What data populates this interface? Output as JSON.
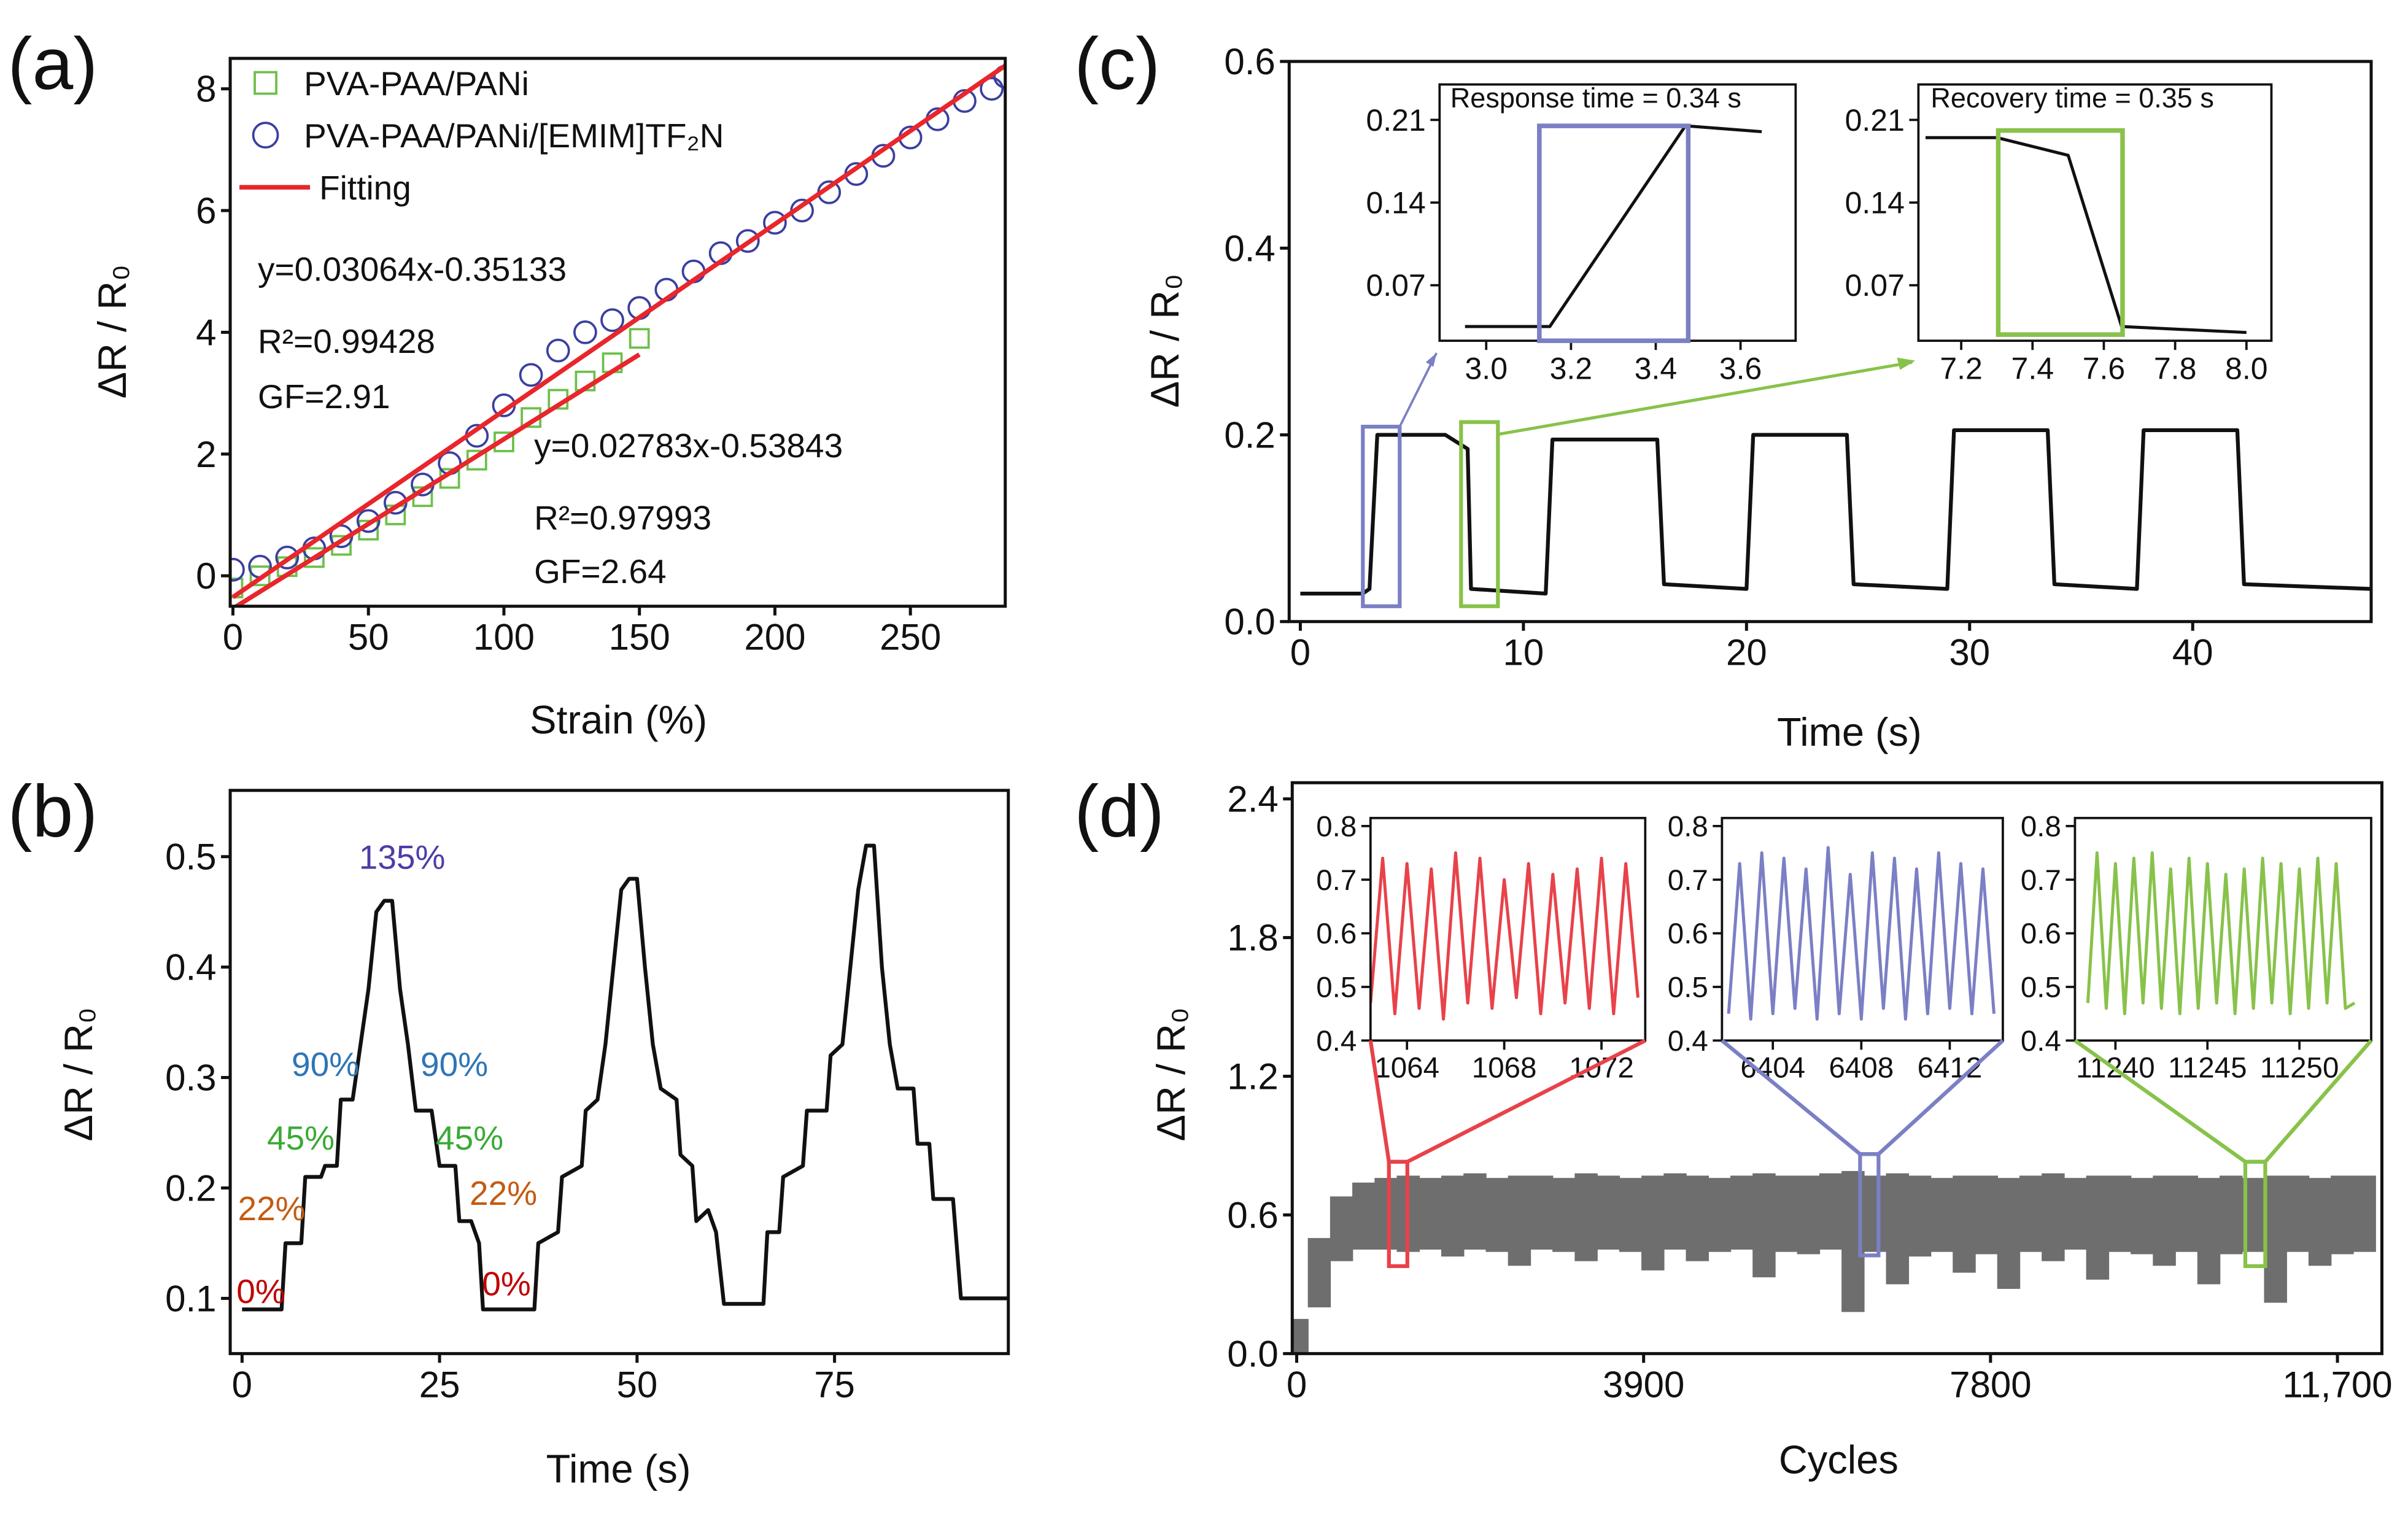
{
  "chart_data": [
    {
      "type": "scatter",
      "panel": "(a)",
      "xlabel": "Strain (%)",
      "ylabel": "ΔR / R₀",
      "legend": "upper left",
      "xlim": [
        -1,
        285
      ],
      "ylim": [
        -0.5,
        8.5
      ],
      "xticks": [
        0,
        50,
        100,
        150,
        200,
        250
      ],
      "yticks": [
        0,
        2,
        4,
        6,
        8
      ],
      "series": [
        {
          "name": "PVA-PAA/PANi",
          "color": "#6cc04a",
          "marker": "square",
          "x": [
            0,
            10,
            20,
            30,
            40,
            50,
            60,
            70,
            80,
            90,
            100,
            110,
            120,
            130,
            140,
            150
          ],
          "values": [
            -0.2,
            0,
            0.15,
            0.3,
            0.5,
            0.75,
            1.0,
            1.3,
            1.6,
            1.9,
            2.2,
            2.6,
            2.9,
            3.2,
            3.5,
            3.9
          ]
        },
        {
          "name": "PVA-PAA/PANi/[EMIM]TF₂N",
          "color": "#3a3fa0",
          "marker": "circle",
          "x": [
            0,
            10,
            20,
            30,
            40,
            50,
            60,
            70,
            80,
            90,
            100,
            110,
            120,
            130,
            140,
            150,
            160,
            170,
            180,
            190,
            200,
            210,
            220,
            230,
            240,
            250,
            260,
            270,
            280,
            285
          ],
          "values": [
            0.1,
            0.15,
            0.3,
            0.45,
            0.65,
            0.9,
            1.2,
            1.5,
            1.85,
            2.3,
            2.8,
            3.3,
            3.7,
            4.0,
            4.2,
            4.4,
            4.7,
            5.0,
            5.3,
            5.5,
            5.8,
            6.0,
            6.3,
            6.6,
            6.9,
            7.2,
            7.5,
            7.8,
            8.0,
            8.2
          ]
        },
        {
          "name": "Fitting",
          "color": "#e8262b",
          "x": [
            0,
            285
          ],
          "values": [
            -0.35133,
            8.38107
          ]
        },
        {
          "color": "#e8262b",
          "x": [
            0,
            150
          ],
          "values": [
            -0.53843,
            3.63607
          ]
        }
      ],
      "annotations": [
        "y=0.03064x-0.35133",
        "R²=0.99428",
        "GF=2.91",
        "y=0.02783x-0.53843",
        "R²=0.97993",
        "GF=2.64"
      ]
    },
    {
      "type": "line",
      "panel": "(b)",
      "xlabel": "Time (s)",
      "ylabel": "ΔR / R₀",
      "color": "#111111",
      "xlim": [
        -1.5,
        97
      ],
      "ylim": [
        0.05,
        0.56
      ],
      "xticks": [
        0,
        25,
        50,
        75
      ],
      "yticks": [
        0.1,
        0.2,
        0.3,
        0.4,
        0.5
      ],
      "x": [
        0,
        5,
        5.5,
        7.5,
        8,
        10,
        10.5,
        12,
        12.5,
        14,
        15,
        16,
        17,
        18,
        19,
        20,
        21,
        22,
        24,
        25,
        27,
        27.5,
        29,
        30,
        30.5,
        37,
        37.5,
        40,
        40.5,
        43,
        43.5,
        45,
        46,
        47,
        48,
        49,
        50,
        51,
        52,
        53,
        55,
        55.5,
        57,
        57.5,
        59,
        60,
        61,
        66,
        66.5,
        68,
        68.5,
        71,
        71.5,
        74,
        74.5,
        76,
        77,
        78,
        79,
        80,
        81,
        82,
        83,
        85,
        85.5,
        87,
        87.5,
        90,
        91,
        97
      ],
      "values": [
        0.09,
        0.09,
        0.15,
        0.15,
        0.21,
        0.21,
        0.22,
        0.22,
        0.28,
        0.28,
        0.33,
        0.38,
        0.45,
        0.46,
        0.46,
        0.38,
        0.33,
        0.27,
        0.27,
        0.22,
        0.22,
        0.17,
        0.17,
        0.15,
        0.09,
        0.09,
        0.15,
        0.16,
        0.21,
        0.22,
        0.27,
        0.28,
        0.33,
        0.4,
        0.47,
        0.48,
        0.48,
        0.4,
        0.33,
        0.29,
        0.28,
        0.23,
        0.22,
        0.17,
        0.18,
        0.16,
        0.095,
        0.095,
        0.16,
        0.16,
        0.21,
        0.22,
        0.27,
        0.27,
        0.32,
        0.33,
        0.4,
        0.47,
        0.51,
        0.51,
        0.4,
        0.33,
        0.29,
        0.29,
        0.24,
        0.24,
        0.19,
        0.19,
        0.1,
        0.1
      ],
      "annotations": [
        {
          "text": "135%",
          "color": "#4b3ea6"
        },
        {
          "text": "90%",
          "color": "#2e75b6"
        },
        {
          "text": "90%",
          "color": "#2e75b6"
        },
        {
          "text": "45%",
          "color": "#3aaa35"
        },
        {
          "text": "45%",
          "color": "#3aaa35"
        },
        {
          "text": "22%",
          "color": "#c55a11"
        },
        {
          "text": "22%",
          "color": "#c55a11"
        },
        {
          "text": "0%",
          "color": "#c00000"
        },
        {
          "text": "0%",
          "color": "#c00000"
        }
      ]
    },
    {
      "type": "line",
      "panel": "(c)",
      "xlabel": "Time (s)",
      "ylabel": "ΔR / R₀",
      "color": "#111111",
      "xlim": [
        -0.5,
        48
      ],
      "ylim": [
        0,
        0.6
      ],
      "xticks": [
        0,
        10,
        20,
        30,
        40
      ],
      "yticks": [
        {
          "value": 0,
          "label": "0.0"
        },
        0.2,
        0.4,
        0.6
      ],
      "x": [
        0,
        2.8,
        3.1,
        3.45,
        6.5,
        7.5,
        7.65,
        11,
        11.3,
        16,
        16.3,
        20,
        20.3,
        24.5,
        24.8,
        29,
        29.3,
        33.5,
        33.8,
        37.5,
        37.8,
        42,
        42.3,
        48
      ],
      "values": [
        0.03,
        0.03,
        0.035,
        0.2,
        0.2,
        0.185,
        0.035,
        0.03,
        0.195,
        0.195,
        0.04,
        0.035,
        0.2,
        0.2,
        0.04,
        0.035,
        0.205,
        0.205,
        0.04,
        0.035,
        0.205,
        0.205,
        0.04,
        0.035
      ]
    },
    {
      "type": "line",
      "color": "#111111",
      "xlim": [
        2.89,
        3.73
      ],
      "ylim": [
        0.023,
        0.24
      ],
      "xticks": [
        {
          "value": 3,
          "label": "3.0"
        },
        3.2,
        3.4,
        3.6
      ],
      "yticks": [
        0.07,
        0.14,
        0.21
      ],
      "x": [
        2.95,
        3.15,
        3.47,
        3.65
      ],
      "values": [
        0.035,
        0.035,
        0.205,
        0.2
      ],
      "annotations": [
        "Response time = 0.34 s"
      ]
    },
    {
      "type": "line",
      "color": "#111111",
      "xlim": [
        7.08,
        8.07
      ],
      "ylim": [
        0.023,
        0.24
      ],
      "xticks": [
        7.2,
        7.4,
        7.6,
        7.8,
        {
          "value": 8,
          "label": "8.0"
        }
      ],
      "yticks": [
        0.07,
        0.14,
        0.21
      ],
      "x": [
        7.1,
        7.3,
        7.5,
        7.65,
        8.0
      ],
      "values": [
        0.195,
        0.195,
        0.18,
        0.035,
        0.03
      ],
      "annotations": [
        "Recovery time = 0.35 s"
      ]
    },
    {
      "type": "band",
      "panel": "(d)",
      "xlabel": "Cycles",
      "ylabel": "ΔR / R₀",
      "color": "#6e6e6e",
      "xlim": [
        -50,
        12200
      ],
      "ylim": [
        0,
        2.47
      ],
      "xticks": [
        0,
        3900,
        7800,
        {
          "value": 11700,
          "label": "11,700"
        }
      ],
      "yticks": [
        {
          "value": 0,
          "label": "0.0"
        },
        0.6,
        1.2,
        1.8,
        2.4
      ],
      "x": [
        0,
        250,
        500,
        750,
        1000,
        1250,
        1500,
        1750,
        2000,
        2250,
        2500,
        2750,
        3000,
        3250,
        3500,
        3750,
        4000,
        4250,
        4500,
        4750,
        5000,
        5250,
        5500,
        5750,
        6000,
        6250,
        6500,
        6750,
        7000,
        7250,
        7500,
        7750,
        8000,
        8250,
        8500,
        8750,
        9000,
        9250,
        9500,
        9750,
        10000,
        10250,
        10500,
        10750,
        11000,
        11250,
        11500,
        11750,
        12000
      ],
      "series": [
        {
          "values": [
            0.15,
            0.5,
            0.68,
            0.74,
            0.76,
            0.77,
            0.76,
            0.77,
            0.78,
            0.76,
            0.77,
            0.77,
            0.76,
            0.78,
            0.77,
            0.76,
            0.77,
            0.78,
            0.77,
            0.76,
            0.77,
            0.78,
            0.77,
            0.77,
            0.78,
            0.79,
            0.77,
            0.78,
            0.77,
            0.76,
            0.77,
            0.77,
            0.76,
            0.77,
            0.78,
            0.76,
            0.77,
            0.77,
            0.76,
            0.77,
            0.77,
            0.76,
            0.77,
            0.76,
            0.77,
            0.77,
            0.76,
            0.77,
            0.77
          ]
        },
        {
          "values": [
            0,
            0.2,
            0.4,
            0.45,
            0.45,
            0.44,
            0.45,
            0.42,
            0.45,
            0.44,
            0.38,
            0.45,
            0.44,
            0.4,
            0.45,
            0.44,
            0.36,
            0.45,
            0.4,
            0.44,
            0.45,
            0.33,
            0.44,
            0.43,
            0.45,
            0.18,
            0.44,
            0.3,
            0.42,
            0.44,
            0.35,
            0.43,
            0.28,
            0.44,
            0.4,
            0.45,
            0.32,
            0.44,
            0.43,
            0.38,
            0.44,
            0.3,
            0.43,
            0.44,
            0.22,
            0.44,
            0.38,
            0.43,
            0.44
          ]
        }
      ]
    },
    {
      "type": "line",
      "color": "#e8424a",
      "xlim": [
        1062.5,
        1073.8
      ],
      "ylim": [
        0.4,
        0.815
      ],
      "xticks": [
        1064,
        1068,
        1072
      ],
      "yticks": [
        0.4,
        0.5,
        0.6,
        0.7,
        0.8
      ],
      "x": [
        1062.5,
        1063,
        1063.5,
        1064,
        1064.5,
        1065,
        1065.5,
        1066,
        1066.5,
        1067,
        1067.5,
        1068,
        1068.5,
        1069,
        1069.5,
        1070,
        1070.5,
        1071,
        1071.5,
        1072,
        1072.5,
        1073,
        1073.5
      ],
      "values": [
        0.47,
        0.74,
        0.45,
        0.73,
        0.46,
        0.72,
        0.44,
        0.75,
        0.47,
        0.74,
        0.46,
        0.7,
        0.48,
        0.73,
        0.45,
        0.71,
        0.47,
        0.72,
        0.46,
        0.74,
        0.45,
        0.73,
        0.48
      ]
    },
    {
      "type": "line",
      "color": "#7b7fc4",
      "xlim": [
        6401.7,
        6414.4
      ],
      "ylim": [
        0.4,
        0.815
      ],
      "xticks": [
        6404,
        6408,
        6412
      ],
      "yticks": [
        0.4,
        0.5,
        0.6,
        0.7,
        0.8
      ],
      "x": [
        6402,
        6402.5,
        6403,
        6403.5,
        6404,
        6404.5,
        6405,
        6405.5,
        6406,
        6406.5,
        6407,
        6407.5,
        6408,
        6408.5,
        6409,
        6409.5,
        6410,
        6410.5,
        6411,
        6411.5,
        6412,
        6412.5,
        6413,
        6413.5,
        6414
      ],
      "values": [
        0.45,
        0.73,
        0.44,
        0.75,
        0.45,
        0.74,
        0.46,
        0.72,
        0.44,
        0.76,
        0.45,
        0.71,
        0.44,
        0.75,
        0.46,
        0.74,
        0.44,
        0.72,
        0.45,
        0.75,
        0.46,
        0.73,
        0.45,
        0.72,
        0.45
      ]
    },
    {
      "type": "line",
      "color": "#88c24a",
      "xlim": [
        11237.8,
        11253.9
      ],
      "ylim": [
        0.4,
        0.815
      ],
      "xticks": [
        11240,
        11245,
        11250
      ],
      "yticks": [
        0.4,
        0.5,
        0.6,
        0.7,
        0.8
      ],
      "x": [
        11238.5,
        11239,
        11239.5,
        11240,
        11240.5,
        11241,
        11241.5,
        11242,
        11242.5,
        11243,
        11243.5,
        11244,
        11244.5,
        11245,
        11245.5,
        11246,
        11246.5,
        11247,
        11247.5,
        11248,
        11248.5,
        11249,
        11249.5,
        11250,
        11250.5,
        11251,
        11251.5,
        11252,
        11252.5,
        11253
      ],
      "values": [
        0.47,
        0.75,
        0.46,
        0.73,
        0.45,
        0.74,
        0.47,
        0.75,
        0.46,
        0.72,
        0.45,
        0.74,
        0.46,
        0.73,
        0.47,
        0.71,
        0.45,
        0.72,
        0.46,
        0.74,
        0.47,
        0.73,
        0.45,
        0.72,
        0.46,
        0.74,
        0.47,
        0.73,
        0.46,
        0.47
      ]
    }
  ]
}
